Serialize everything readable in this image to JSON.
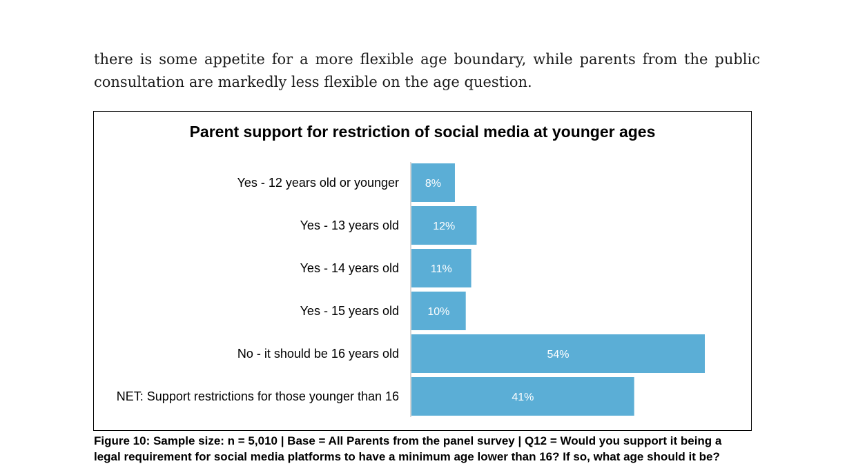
{
  "body_text": {
    "line1": "there is some appetite for a more flexible age boundary, while parents from the public",
    "line2": "consultation are markedly less flexible on the age question."
  },
  "figure": {
    "caption_line1": "Figure 10: Sample size: n = 5,010 | Base = All Parents from the panel survey | Q12 = Would you support it being a",
    "caption_line2": "legal requirement for social media platforms to have a minimum age lower than 16? If so, what age should it be?"
  },
  "chart_data": {
    "type": "bar",
    "orientation": "horizontal",
    "title": "Parent support for restriction of social media at younger ages",
    "categories": [
      "Yes - 12 years old or younger",
      "Yes - 13 years old",
      "Yes - 14 years old",
      "Yes - 15 years old",
      "No - it should be 16 years old",
      "NET: Support restrictions for those younger than 16"
    ],
    "values": [
      8,
      12,
      11,
      10,
      54,
      41
    ],
    "value_labels": [
      "8%",
      "12%",
      "11%",
      "10%",
      "54%",
      "41%"
    ],
    "unit": "%",
    "xlim": [
      0,
      54
    ],
    "grid": false,
    "legend": "none",
    "bar_color": "#5baed6",
    "label_color": "#ffffff"
  }
}
